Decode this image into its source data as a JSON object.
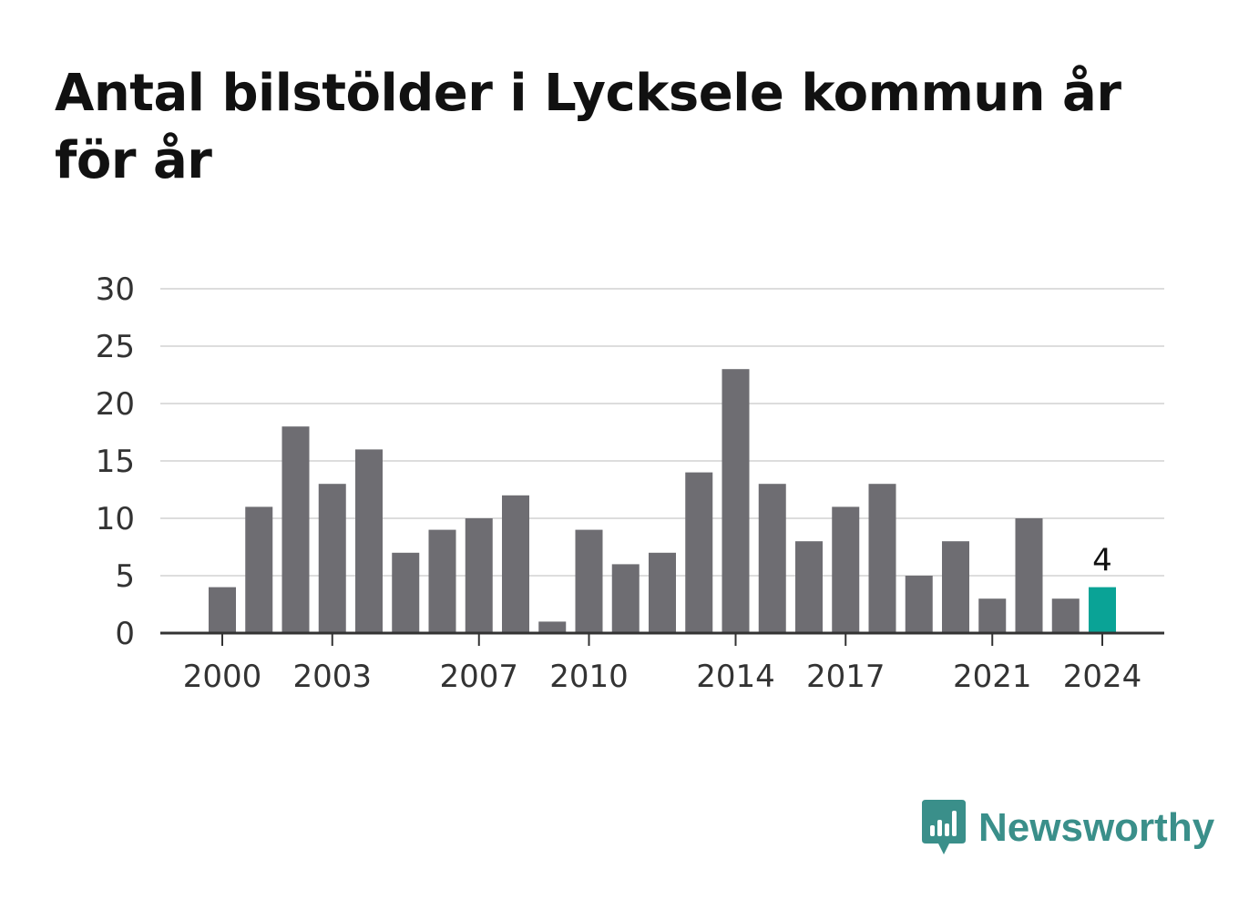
{
  "brand": {
    "name": "Newsworthy",
    "color": "#3a8f8a",
    "icon": "bar-chart-speech-bubble-icon"
  },
  "chart_data": {
    "type": "bar",
    "title": "Antal bilstölder i Lycksele kommun år för år",
    "xlabel": "",
    "ylabel": "",
    "ylim": [
      0,
      30
    ],
    "yticks": [
      0,
      5,
      10,
      15,
      20,
      25,
      30
    ],
    "xticks": [
      "2000",
      "2003",
      "2007",
      "2010",
      "2014",
      "2017",
      "2021",
      "2024"
    ],
    "grid": true,
    "categories": [
      "2000",
      "2001",
      "2002",
      "2003",
      "2004",
      "2005",
      "2006",
      "2007",
      "2008",
      "2009",
      "2010",
      "2011",
      "2012",
      "2013",
      "2014",
      "2015",
      "2016",
      "2017",
      "2018",
      "2019",
      "2020",
      "2021",
      "2022",
      "2023",
      "2024"
    ],
    "values": [
      4,
      11,
      18,
      13,
      16,
      7,
      9,
      10,
      12,
      1,
      9,
      6,
      7,
      14,
      23,
      13,
      8,
      11,
      13,
      5,
      8,
      3,
      10,
      3,
      4
    ],
    "bar_color": "#6e6d72",
    "highlight": {
      "category": "2024",
      "color": "#0aa396",
      "label": "4"
    }
  }
}
